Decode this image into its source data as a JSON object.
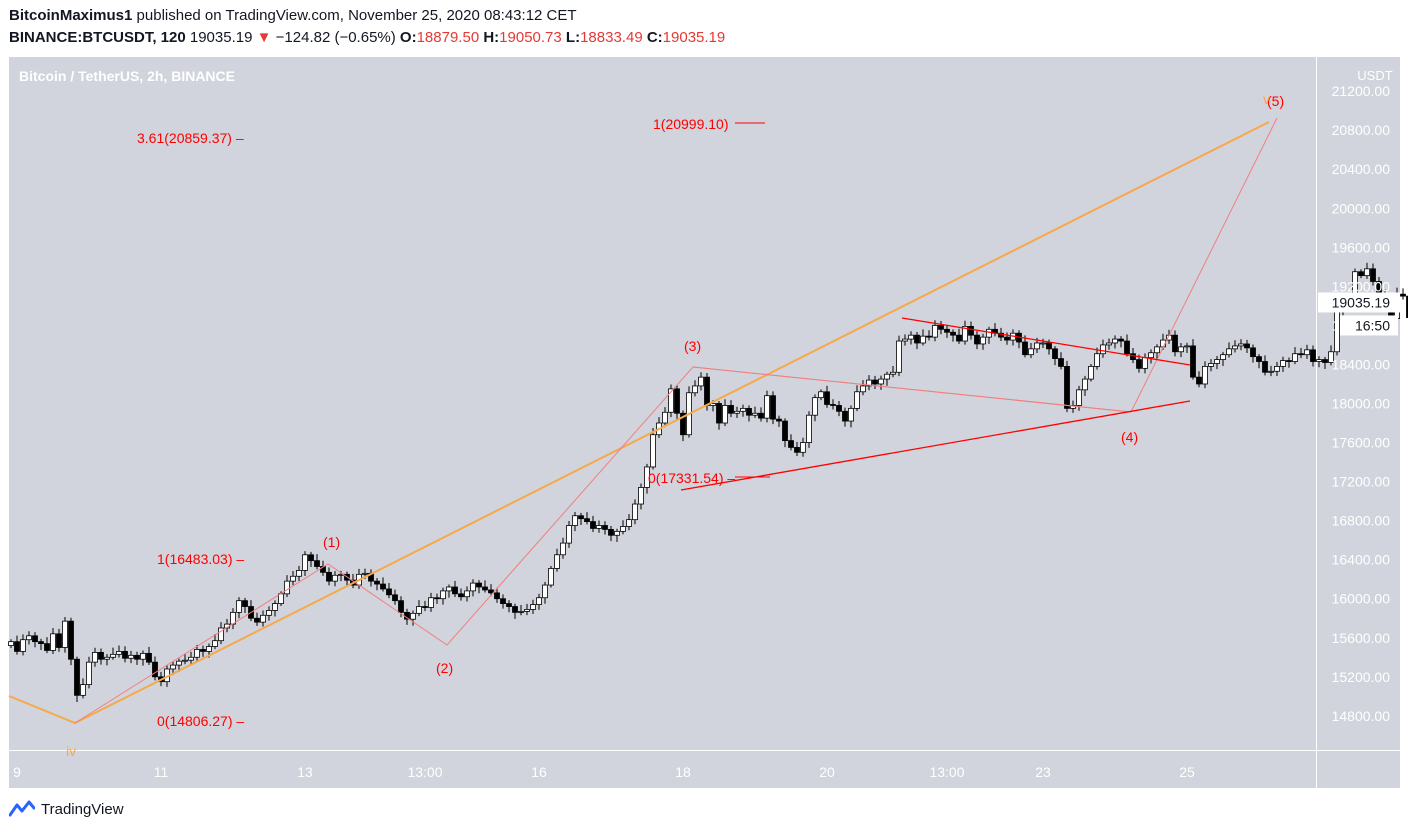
{
  "header": {
    "publisher": "BitcoinMaximus1",
    "published_text": "published on TradingView.com, November 25, 2020 08:43:12 CET",
    "symbol": "BINANCE:BTCUSDT, 120",
    "last": "19035.19",
    "arrow": "▼",
    "change": "−124.82 (−0.65%)",
    "open_label": "O:",
    "open": "18879.50",
    "high_label": "H:",
    "high": "19050.73",
    "low_label": "L:",
    "low": "18833.49",
    "close_label": "C:",
    "close": "19035.19"
  },
  "legend_title": "Bitcoin / TetherUS, 2h, BINANCE",
  "price_axis": {
    "unit": "USDT",
    "current_price": "19035.19",
    "countdown": "16:50"
  },
  "footer": {
    "brand": "TradingView"
  },
  "colors": {
    "up": "#ffffff",
    "down": "#000000",
    "bg": "#d1d4dc",
    "fib": "#ff0000",
    "orange": "#f6a94a",
    "wave": "#f08080"
  },
  "chart_data": {
    "type": "candlestick",
    "title": "Bitcoin / TetherUS, 2h, BINANCE",
    "ylim": [
      14450,
      21550
    ],
    "y_ticks": [
      "14800.00",
      "15200.00",
      "15600.00",
      "16000.00",
      "16400.00",
      "16800.00",
      "17200.00",
      "17600.00",
      "18000.00",
      "18400.00",
      "18800.00",
      "19200.00",
      "19600.00",
      "20000.00",
      "20400.00",
      "20800.00",
      "21200.00"
    ],
    "x_ticks": [
      {
        "label": "9",
        "bar": 1
      },
      {
        "label": "11",
        "bar": 25
      },
      {
        "label": "13",
        "bar": 49
      },
      {
        "label": "13:00",
        "bar": 69
      },
      {
        "label": "16",
        "bar": 88
      },
      {
        "label": "18",
        "bar": 112
      },
      {
        "label": "20",
        "bar": 136
      },
      {
        "label": "13:00",
        "bar": 156
      },
      {
        "label": "23",
        "bar": 172
      },
      {
        "label": "25",
        "bar": 196
      }
    ],
    "closes": [
      15560,
      15460,
      15580,
      15620,
      15560,
      15540,
      15470,
      15640,
      15500,
      15770,
      15380,
      15010,
      15120,
      15350,
      15450,
      15380,
      15400,
      15430,
      15460,
      15390,
      15420,
      15380,
      15440,
      15350,
      15200,
      15150,
      15280,
      15320,
      15360,
      15370,
      15400,
      15480,
      15460,
      15510,
      15570,
      15700,
      15740,
      15860,
      15980,
      15920,
      15800,
      15760,
      15830,
      15880,
      15950,
      16050,
      16180,
      16230,
      16290,
      16450,
      16390,
      16330,
      16270,
      16180,
      16240,
      16250,
      16190,
      16140,
      16250,
      16260,
      16180,
      16150,
      16100,
      16040,
      15980,
      15860,
      15790,
      15850,
      15920,
      15910,
      16010,
      16000,
      16080,
      16120,
      16050,
      16020,
      16080,
      16160,
      16120,
      16090,
      16060,
      16000,
      15950,
      15920,
      15860,
      15870,
      15890,
      15940,
      16010,
      16140,
      16310,
      16450,
      16570,
      16750,
      16850,
      16820,
      16790,
      16720,
      16750,
      16710,
      16650,
      16690,
      16740,
      16810,
      16970,
      17140,
      17350,
      17680,
      17800,
      17910,
      18150,
      17900,
      17680,
      18110,
      18180,
      18270,
      17980,
      18000,
      17800,
      17980,
      17900,
      17920,
      17950,
      17880,
      17900,
      17850,
      18080,
      17840,
      17820,
      17620,
      17550,
      17500,
      17600,
      17880,
      18060,
      18120,
      17990,
      17980,
      17920,
      17820,
      17950,
      18120,
      18180,
      18240,
      18200,
      18250,
      18300,
      18320,
      18640,
      18660,
      18700,
      18620,
      18690,
      18680,
      18800,
      18760,
      18730,
      18700,
      18640,
      18790,
      18700,
      18610,
      18680,
      18760,
      18720,
      18680,
      18650,
      18720,
      18630,
      18500,
      18560,
      18620,
      18620,
      18560,
      18460,
      18380,
      17950,
      17980,
      18140,
      18250,
      18380,
      18510,
      18600,
      18620,
      18660,
      18640,
      18510,
      18450,
      18360,
      18470,
      18520,
      18580,
      18650,
      18700,
      18530,
      18580,
      18590,
      18270,
      18200,
      18380,
      18410,
      18450,
      18500,
      18560,
      18590,
      18610,
      18570,
      18480,
      18430,
      18320,
      18330,
      18380,
      18440,
      18430,
      18510,
      18500,
      18550,
      18430,
      18450,
      18420,
      18530,
      18950,
      19000,
      19060,
      19350,
      19310,
      19380,
      19250,
      19130,
      19040,
      18870,
      19120,
      19100,
      18880,
      18830,
      19035
    ],
    "close_summary": {
      "first": 15560,
      "last": 19035.19,
      "min_close": 15010,
      "max_close": 19380
    },
    "annotations": [
      {
        "text": "3.61(20859.37)",
        "price": 20859.37
      },
      {
        "text": "1(20999.10)",
        "price": 20999.1
      },
      {
        "text": "1(16483.03)",
        "price": 16483.03
      },
      {
        "text": "0(17331.54)",
        "price": 17331.54
      },
      {
        "text": "0(14806.27)",
        "price": 14806.27
      }
    ],
    "wave_labels": [
      "(1)",
      "(2)",
      "(3)",
      "(4)",
      "(5)",
      "iv",
      "v"
    ]
  }
}
